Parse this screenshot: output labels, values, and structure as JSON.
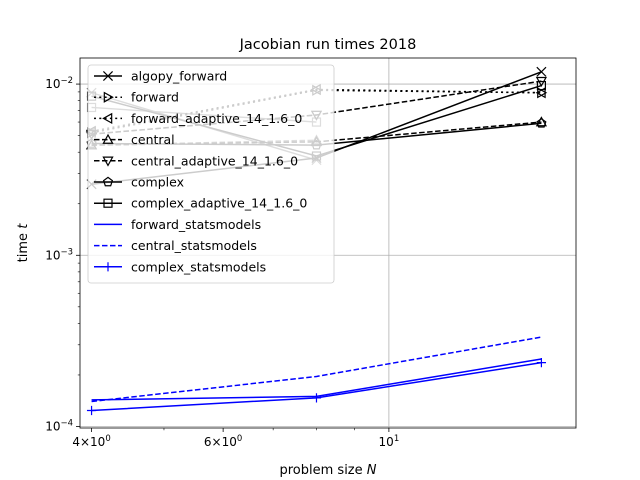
{
  "chart_data": {
    "type": "line",
    "title": "Jacobian run times 2018",
    "xlabel_text": "problem size ",
    "xlabel_var": "N",
    "ylabel_text": "time ",
    "ylabel_var": "t",
    "xscale": "log",
    "yscale": "log",
    "xlim": [
      3.86,
      17.8
    ],
    "ylim": [
      9.8e-05,
      0.0142
    ],
    "x": [
      4,
      8,
      16
    ],
    "grid": "major",
    "legend_position": "upper-left",
    "x_ticks": [
      {
        "value": 4,
        "base": "4",
        "sup": "0"
      },
      {
        "value": 6,
        "base": "6",
        "sup": "0"
      },
      {
        "value": 10,
        "base": "10",
        "sup": "1"
      }
    ],
    "y_ticks": [
      {
        "value": 0.01,
        "base": "10",
        "sup": "−2"
      },
      {
        "value": 0.001,
        "base": "10",
        "sup": "−3"
      },
      {
        "value": 0.0001,
        "base": "10",
        "sup": "−4"
      }
    ],
    "series": [
      {
        "name": "algopy_forward",
        "color": "#000000",
        "dash": "solid",
        "marker": "x",
        "values": [
          0.0026,
          0.0037,
          0.0118
        ]
      },
      {
        "name": "forward",
        "color": "#000000",
        "dash": "dotted",
        "marker": "triangle-right",
        "values": [
          0.0052,
          0.0092,
          0.0089
        ]
      },
      {
        "name": "forward_adaptive_14_1.6_0",
        "color": "#000000",
        "dash": "dotted",
        "marker": "triangle-left",
        "values": [
          0.0053,
          0.0093,
          0.0089
        ]
      },
      {
        "name": "central",
        "color": "#000000",
        "dash": "dashed",
        "marker": "triangle-up",
        "values": [
          0.0044,
          0.0046,
          0.006
        ]
      },
      {
        "name": "central_adaptive_14_1.6_0",
        "color": "#000000",
        "dash": "dashed",
        "marker": "triangle-down",
        "values": [
          0.0051,
          0.0066,
          0.0104
        ]
      },
      {
        "name": "complex",
        "color": "#000000",
        "dash": "solid",
        "marker": "pentagon",
        "values": [
          0.0045,
          0.0044,
          0.0059
        ]
      },
      {
        "name": "complex_adaptive_14_1.6_0",
        "color": "#000000",
        "dash": "solid",
        "marker": "square",
        "values": [
          0.0085,
          0.0038,
          0.0098
        ]
      },
      {
        "name": "forward_statsmodels",
        "color": "#0000ff",
        "dash": "solid",
        "marker": "none",
        "values": [
          0.000143,
          0.00015,
          0.000248
        ]
      },
      {
        "name": "central_statsmodels",
        "color": "#0000ff",
        "dash": "dashed",
        "marker": "none",
        "values": [
          0.00014,
          0.000196,
          0.000333
        ]
      },
      {
        "name": "complex_statsmodels",
        "color": "#0000ff",
        "dash": "solid",
        "marker": "plus",
        "values": [
          0.000124,
          0.000147,
          0.000236
        ]
      }
    ],
    "overlay_gray": [
      {
        "dash": "solid",
        "marker": "x",
        "values": [
          0.0089,
          0.0036
        ]
      },
      {
        "dash": "dotted",
        "marker": "triangle-left",
        "values": [
          0.0052,
          0.0093
        ]
      },
      {
        "dash": "dashed",
        "marker": "triangle-up",
        "values": [
          0.0044,
          0.0047
        ]
      },
      {
        "dash": "dashed",
        "marker": "triangle-down",
        "values": [
          0.0051,
          0.0066
        ]
      },
      {
        "dash": "solid",
        "marker": "square",
        "values": [
          0.0073,
          0.006
        ]
      }
    ],
    "overlay_color": "#555555"
  }
}
